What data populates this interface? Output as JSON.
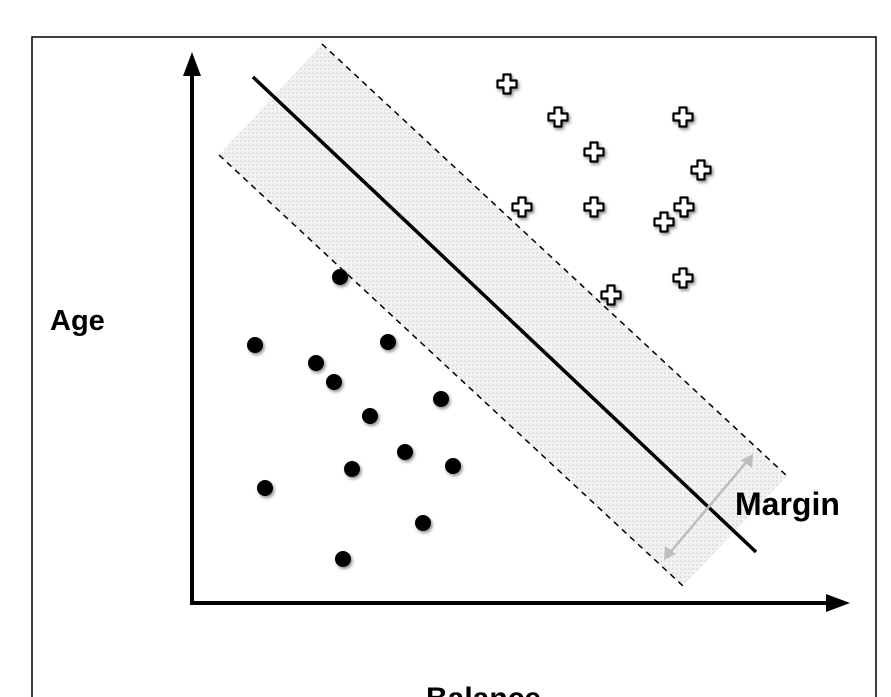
{
  "diagram": {
    "title": "",
    "y_axis_label": "Age",
    "x_axis_label": "Balance",
    "margin_label": "Margin"
  },
  "chart_data": {
    "type": "scatter",
    "title": "",
    "xlabel": "Balance",
    "ylabel": "Age",
    "series": [
      {
        "marker": "plus",
        "points": [
          [
            507,
            84
          ],
          [
            558,
            117
          ],
          [
            683,
            117
          ],
          [
            594,
            152
          ],
          [
            701,
            170
          ],
          [
            522,
            207
          ],
          [
            594,
            207
          ],
          [
            684,
            207
          ],
          [
            664,
            222
          ],
          [
            683,
            278
          ],
          [
            611,
            295
          ]
        ]
      },
      {
        "marker": "dot",
        "points": [
          [
            340,
            277
          ],
          [
            255,
            345
          ],
          [
            388,
            342
          ],
          [
            316,
            363
          ],
          [
            334,
            382
          ],
          [
            441,
            399
          ],
          [
            370,
            416
          ],
          [
            405,
            452
          ],
          [
            453,
            466
          ],
          [
            352,
            469
          ],
          [
            265,
            488
          ],
          [
            423,
            523
          ],
          [
            343,
            559
          ]
        ]
      }
    ],
    "decision_boundary": "solid line between the two classes",
    "margin_boundaries": "two dashed lines parallel to the decision boundary, shaded band between them",
    "grid": false,
    "legend": "none"
  },
  "colors": {
    "frame": "#000000",
    "axis": "#000000",
    "margin_band": "#e4e4e4",
    "margin_arrow": "#bdbdbd",
    "point_fill_dot": "#000000",
    "point_fill_plus": "#ffffff"
  }
}
